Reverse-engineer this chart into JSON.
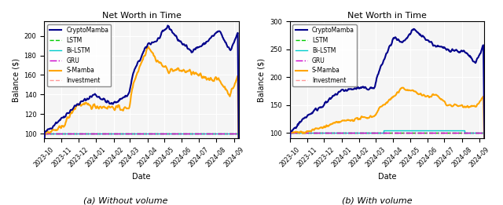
{
  "title": "Net Worth in Time",
  "xlabel": "Date",
  "ylabel": "Balance ($)",
  "caption_left": "(a) Without volume",
  "caption_right": "(b) With volume",
  "legend_entries": [
    "CryptoMamba",
    "LSTM",
    "Bi-LSTM",
    "GRU",
    "S-Mamba",
    "Investment"
  ],
  "colors": {
    "CryptoMamba": "#00008B",
    "LSTM": "#00CC00",
    "Bi-LSTM": "#00CCCC",
    "GRU": "#CC00CC",
    "S-Mamba": "#FFA500",
    "Investment": "#FF9999"
  },
  "linestyles": {
    "CryptoMamba": "-",
    "LSTM": "--",
    "Bi-LSTM": "-",
    "GRU": "-.",
    "S-Mamba": "-",
    "Investment": "--"
  },
  "linewidths": {
    "CryptoMamba": 1.5,
    "LSTM": 1.0,
    "Bi-LSTM": 1.0,
    "GRU": 1.0,
    "S-Mamba": 1.5,
    "Investment": 1.0
  },
  "left_ylim": [
    95,
    215
  ],
  "right_ylim": [
    90,
    300
  ],
  "figsize": [
    6.4,
    2.61
  ],
  "dpi": 100,
  "background_color": "#f0f0f0"
}
